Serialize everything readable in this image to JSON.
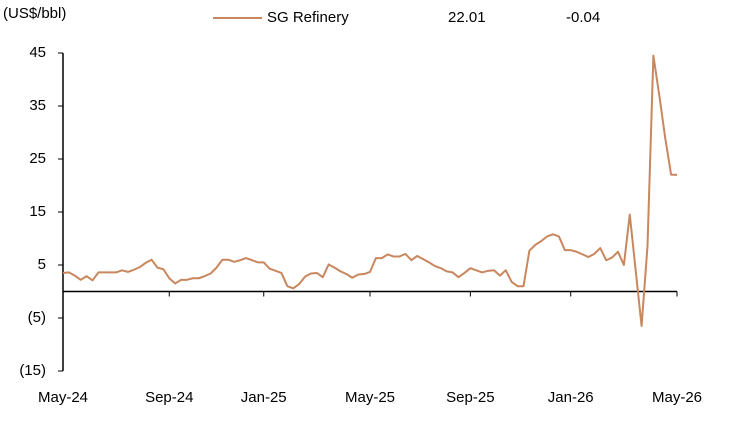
{
  "chart_data": {
    "type": "line",
    "unit_label": "(US$/bbl)",
    "latest": 22.01,
    "change": -0.04,
    "categories": [
      "May-24",
      null,
      null,
      null,
      null,
      null,
      null,
      null,
      null,
      null,
      null,
      null,
      null,
      null,
      null,
      null,
      null,
      null,
      "Sep-24",
      null,
      null,
      null,
      null,
      null,
      null,
      null,
      null,
      null,
      null,
      null,
      null,
      null,
      null,
      null,
      "Jan-25",
      null,
      null,
      null,
      null,
      null,
      null,
      null,
      null,
      null,
      null,
      null,
      null,
      null,
      null,
      null,
      null,
      null,
      "May-25",
      null,
      null,
      null,
      null,
      null,
      null,
      null,
      null,
      null,
      null,
      null,
      null,
      null,
      null,
      null,
      null,
      "Sep-25",
      null,
      null,
      null,
      null,
      null,
      null,
      null,
      null,
      null,
      null,
      null,
      null,
      null,
      null,
      null,
      null,
      "Jan-26",
      null,
      null,
      null,
      null,
      null,
      null,
      null,
      null,
      null,
      null,
      null,
      null,
      null,
      null,
      null,
      null,
      null,
      "May-26"
    ],
    "series": [
      {
        "name": "SG Refinery",
        "color": "#c8875e",
        "values": [
          3.5,
          3.6,
          3.0,
          2.2,
          2.9,
          2.1,
          3.6,
          3.6,
          3.6,
          3.6,
          4.0,
          3.7,
          4.1,
          4.6,
          5.4,
          6.0,
          4.5,
          4.2,
          2.5,
          1.5,
          2.2,
          2.2,
          2.5,
          2.5,
          2.9,
          3.4,
          4.5,
          6.0,
          6.0,
          5.6,
          5.9,
          6.3,
          5.9,
          5.5,
          5.5,
          4.3,
          3.9,
          3.5,
          1.0,
          0.6,
          1.4,
          2.8,
          3.4,
          3.5,
          2.7,
          5.1,
          4.5,
          3.8,
          3.3,
          2.6,
          3.2,
          3.3,
          3.7,
          6.3,
          6.3,
          7.0,
          6.6,
          6.6,
          7.1,
          5.9,
          6.7,
          6.1,
          5.5,
          4.8,
          4.4,
          3.8,
          3.6,
          2.7,
          3.5,
          4.4,
          4.0,
          3.6,
          3.9,
          4.0,
          3.0,
          4.0,
          1.8,
          1.0,
          1.0,
          7.7,
          8.8,
          9.5,
          10.4,
          10.8,
          10.4,
          7.8,
          7.8,
          7.5,
          7.0,
          6.5,
          7.1,
          8.2,
          5.9,
          6.4,
          7.5,
          5.0,
          14.5,
          4.0,
          -6.5,
          8.5,
          44.5,
          37.0,
          29.0,
          22.05,
          22.01
        ]
      }
    ],
    "ylim": [
      -15,
      45
    ],
    "yticks": [
      45,
      35,
      25,
      15,
      5,
      {
        "value": -5,
        "label": "(5)"
      },
      {
        "value": -15,
        "label": "(15)"
      }
    ]
  }
}
